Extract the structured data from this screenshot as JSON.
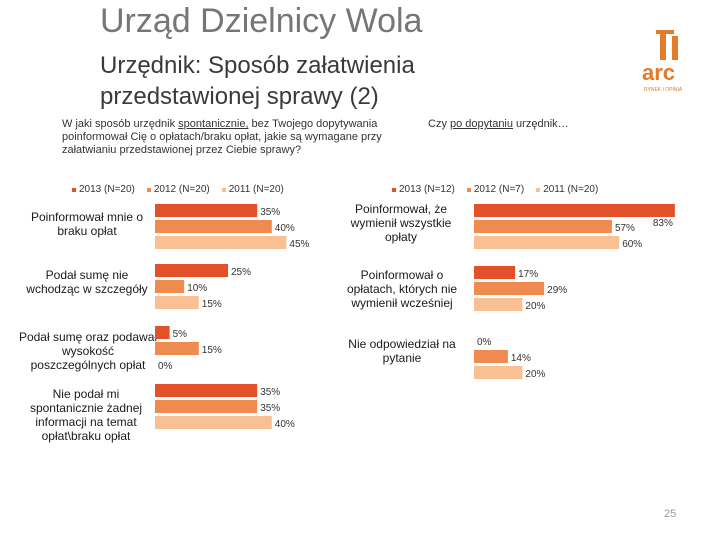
{
  "header": {
    "title": "Urząd Dzielnicy Wola",
    "subtitle": "Urzędnik: Sposób załatwienia przedstawionej sprawy (2)"
  },
  "colors": {
    "y2013": "#e2512a",
    "y2012": "#f08b50",
    "y2011": "#f9c193",
    "title": "#767676",
    "logo": "#e27b2a"
  },
  "logo": {
    "text": "arc",
    "tagline": "RYNEK I OPINIA"
  },
  "left_panel": {
    "question_pre": "W jaki sposób urzędnik ",
    "question_underlined": "spontanicznie,",
    "question_post": " bez Twojego dopytywania poinformował Cię o opłatach/braku opłat, jakie są wymagane przy załatwianiu przedstawionej przez Ciebie sprawy?",
    "legend": [
      "2013 (N=20)",
      "2012 (N=20)",
      "2011 (N=20)"
    ]
  },
  "right_panel": {
    "question_pre": "Czy ",
    "question_underlined": "po dopytaniu",
    "question_post": " urzędnik…",
    "legend": [
      "2013 (N=12)",
      "2012 (N=7)",
      "2011 (N=20)"
    ]
  },
  "chart_data": [
    {
      "type": "bar",
      "orientation": "horizontal",
      "categories": [
        "Poinformował mnie o braku opłat",
        "Podał sumę nie wchodząc w szczegóły",
        "Podał sumę oraz podawał wysokość poszczególnych opłat",
        "Nie podał mi spontanicznie żadnej informacji na temat opłat\\braku opłat"
      ],
      "series": [
        {
          "name": "2013 (N=20)",
          "values": [
            35,
            25,
            5,
            35
          ]
        },
        {
          "name": "2012 (N=20)",
          "values": [
            40,
            10,
            15,
            35
          ]
        },
        {
          "name": "2011 (N=20)",
          "values": [
            45,
            15,
            0,
            40
          ]
        }
      ],
      "value_suffix": "%",
      "legend_position": "top",
      "grid": false
    },
    {
      "type": "bar",
      "orientation": "horizontal",
      "categories": [
        "Poinformował, że wymienił wszystkie opłaty",
        "Poinformował o opłatach, których nie wymienił wcześniej",
        "Nie odpowiedział na pytanie"
      ],
      "series": [
        {
          "name": "2013 (N=12)",
          "values": [
            83,
            17,
            0
          ]
        },
        {
          "name": "2012 (N=7)",
          "values": [
            57,
            29,
            14
          ]
        },
        {
          "name": "2011 (N=20)",
          "values": [
            60,
            20,
            20
          ]
        }
      ],
      "value_suffix": "%",
      "legend_position": "top",
      "grid": false
    }
  ],
  "footer": {
    "page_number": "25"
  }
}
